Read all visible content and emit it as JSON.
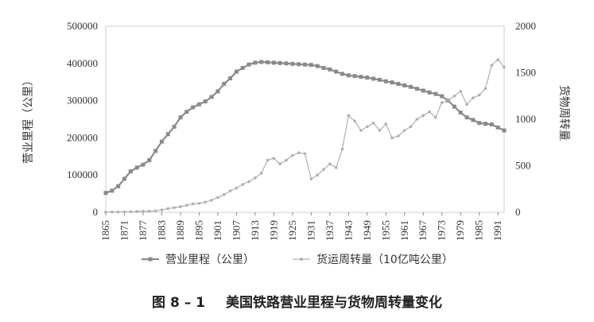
{
  "caption": {
    "figure_no": "图 8 – 1",
    "title": "美国铁路营业里程与货物周转量变化"
  },
  "chart_data": {
    "type": "line",
    "title": "美国铁路营业里程与货物周转量变化",
    "x": [
      1865,
      1867,
      1869,
      1871,
      1873,
      1875,
      1877,
      1879,
      1881,
      1883,
      1885,
      1887,
      1889,
      1891,
      1893,
      1895,
      1897,
      1899,
      1901,
      1903,
      1905,
      1907,
      1909,
      1911,
      1913,
      1915,
      1917,
      1919,
      1921,
      1923,
      1925,
      1927,
      1929,
      1931,
      1933,
      1935,
      1937,
      1939,
      1941,
      1943,
      1945,
      1947,
      1949,
      1951,
      1953,
      1955,
      1957,
      1959,
      1961,
      1963,
      1965,
      1967,
      1969,
      1971,
      1973,
      1975,
      1977,
      1979,
      1981,
      1983,
      1985,
      1987,
      1989,
      1991,
      1993
    ],
    "x_tick_labels": [
      "1865",
      "1871",
      "1877",
      "1883",
      "1889",
      "1895",
      "1901",
      "1907",
      "1913",
      "1919",
      "1925",
      "1931",
      "1937",
      "1943",
      "1949",
      "1955",
      "1961",
      "1967",
      "1973",
      "1979",
      "1985",
      "1991"
    ],
    "xlim": [
      1865,
      1993
    ],
    "ylabel_left": "营业里程（公里）",
    "ylim_left": [
      0,
      500000
    ],
    "yticks_left": [
      0,
      100000,
      200000,
      300000,
      400000,
      500000
    ],
    "ylabel_right": "货物周转量",
    "ylim_right": [
      0,
      2000
    ],
    "yticks_right": [
      0,
      500,
      1000,
      1500,
      2000
    ],
    "series": [
      {
        "name": "营业里程（公里）",
        "axis": "left",
        "color": "#8a8a8a",
        "values": [
          52000,
          58000,
          70000,
          90000,
          110000,
          120000,
          128000,
          140000,
          165000,
          190000,
          210000,
          230000,
          255000,
          270000,
          282000,
          290000,
          298000,
          310000,
          325000,
          345000,
          360000,
          378000,
          388000,
          397000,
          402000,
          404000,
          403000,
          402000,
          401000,
          400000,
          399000,
          398000,
          397000,
          396000,
          393000,
          388000,
          384000,
          378000,
          372000,
          368000,
          366000,
          364000,
          362000,
          359000,
          356000,
          352000,
          349000,
          345000,
          341000,
          337000,
          332000,
          327000,
          322000,
          318000,
          312000,
          300000,
          284000,
          268000,
          255000,
          248000,
          240000,
          238000,
          236000,
          228000,
          220000
        ]
      },
      {
        "name": "货运周转量（10亿吨公里）",
        "axis": "right",
        "color": "#b0b0b0",
        "values": [
          2,
          3,
          4,
          5,
          6,
          8,
          10,
          12,
          15,
          25,
          40,
          50,
          60,
          75,
          90,
          95,
          110,
          130,
          160,
          190,
          230,
          260,
          300,
          330,
          370,
          420,
          560,
          580,
          520,
          560,
          610,
          640,
          630,
          360,
          400,
          460,
          520,
          480,
          680,
          1040,
          980,
          880,
          920,
          960,
          880,
          950,
          800,
          820,
          880,
          920,
          1000,
          1040,
          1080,
          1020,
          1180,
          1200,
          1250,
          1300,
          1160,
          1230,
          1260,
          1330,
          1580,
          1640,
          1560
        ]
      }
    ],
    "legend_position": "bottom",
    "grid": false
  }
}
